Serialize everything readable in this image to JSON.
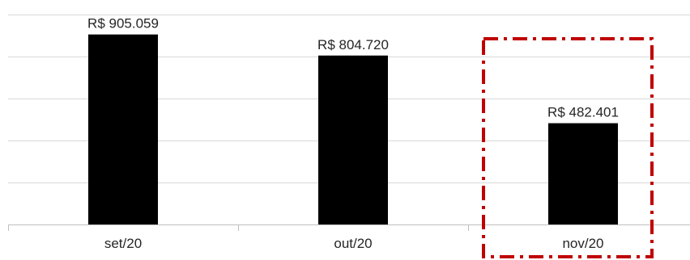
{
  "chart_data": {
    "type": "bar",
    "categories": [
      "set/20",
      "out/20",
      "nov/20"
    ],
    "values": [
      905059,
      804720,
      482401
    ],
    "data_labels": [
      "R$ 905.059",
      "R$ 804.720",
      "R$ 482.401"
    ],
    "ylim": [
      0,
      1000000
    ],
    "grid": true,
    "legend": "none",
    "highlight": {
      "category": "nov/20",
      "style": "dash-dot",
      "color": "#c00000"
    },
    "colors": {
      "bar": "#000000",
      "gridline": "#d9d9d9",
      "axis": "#bfbfbf",
      "text": "#262626"
    }
  }
}
